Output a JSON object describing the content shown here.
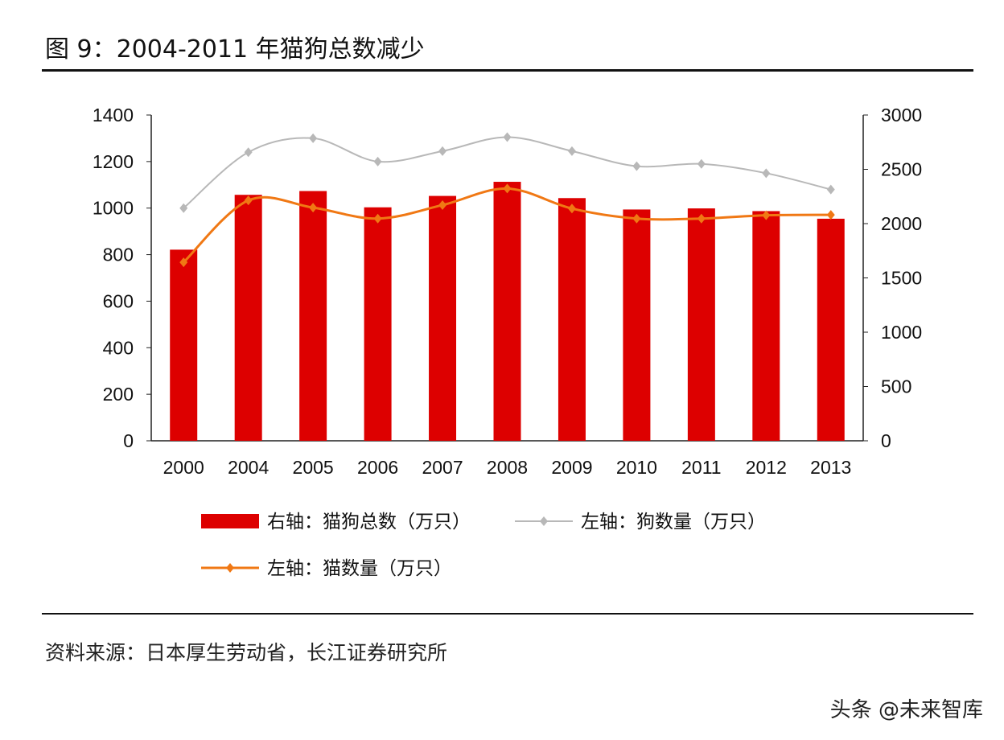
{
  "title": "图  9：2004-2011 年猫狗总数减少",
  "source": "资料来源：日本厚生劳动省，长江证券研究所",
  "watermark": "头条 @未来智库",
  "chart_data": {
    "type": "bar+line",
    "categories": [
      "2000",
      "2004",
      "2005",
      "2006",
      "2007",
      "2008",
      "2009",
      "2010",
      "2011",
      "2012",
      "2013"
    ],
    "left_axis": {
      "ylim": [
        0,
        1400
      ],
      "ticks": [
        "0",
        "200",
        "400",
        "600",
        "800",
        "1000",
        "1200",
        "1400"
      ]
    },
    "right_axis": {
      "ylim": [
        0,
        3000
      ],
      "ticks": [
        "0",
        "500",
        "1000",
        "1500",
        "2000",
        "2500",
        "3000"
      ]
    },
    "grid": false,
    "legend_position": "bottom",
    "series": [
      {
        "name": "右轴：猫狗总数（万只）",
        "type": "bar",
        "axis": "right",
        "color": "#dd0000",
        "values": [
          1760,
          2265,
          2300,
          2150,
          2255,
          2385,
          2235,
          2130,
          2140,
          2115,
          2045
        ]
      },
      {
        "name": "左轴：狗数量（万只）",
        "type": "line",
        "axis": "left",
        "color": "#b8b8b8",
        "values": [
          1000,
          1240,
          1300,
          1200,
          1245,
          1305,
          1245,
          1180,
          1190,
          1150,
          1080
        ]
      },
      {
        "name": "左轴：猫数量（万只）",
        "type": "line",
        "axis": "left",
        "color": "#f07814",
        "values": [
          767,
          1033,
          1002,
          955,
          1013,
          1084,
          998,
          955,
          955,
          969,
          971
        ]
      }
    ]
  }
}
